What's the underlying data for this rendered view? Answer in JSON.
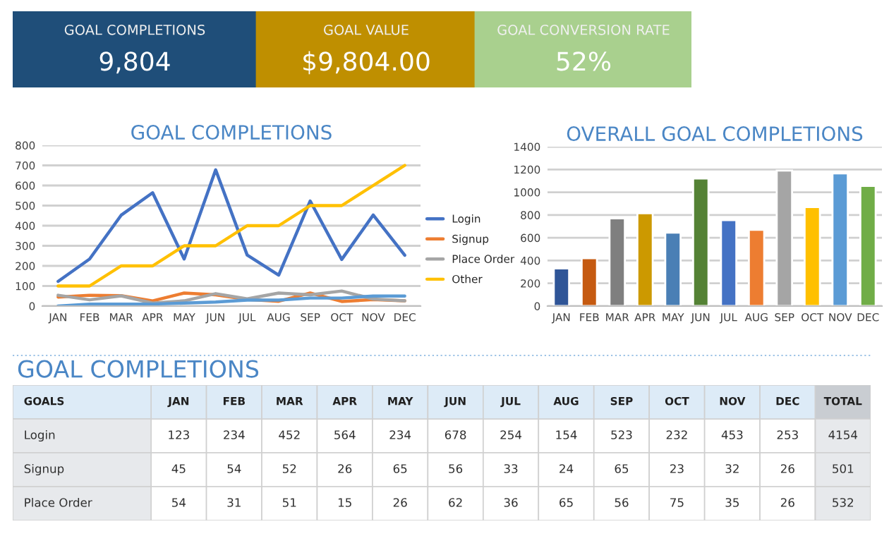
{
  "chart_data": [
    {
      "type": "other",
      "annotations": [
        "GOAL COMPLETIONS",
        "9,804",
        "GOAL VALUE",
        "$9,804.00",
        "GOAL CONVERSION RATE",
        "52%"
      ],
      "colors": [
        "#1f4e79",
        "#bf8f00",
        "#a9d08e"
      ]
    },
    {
      "type": "line",
      "title": "GOAL COMPLETIONS",
      "categories": [
        "JAN",
        "FEB",
        "MAR",
        "APR",
        "MAY",
        "JUN",
        "JUL",
        "AUG",
        "SEP",
        "OCT",
        "NOV",
        "DEC"
      ],
      "series": [
        {
          "name": "Login",
          "color": "#4472c4",
          "values": [
            123,
            234,
            452,
            564,
            234,
            678,
            254,
            154,
            523,
            232,
            453,
            253
          ]
        },
        {
          "name": "Signup",
          "color": "#ed7d31",
          "values": [
            45,
            54,
            52,
            26,
            65,
            56,
            33,
            24,
            65,
            23,
            32,
            26
          ]
        },
        {
          "name": "Place Order",
          "color": "#a5a5a5",
          "values": [
            54,
            31,
            51,
            15,
            26,
            62,
            36,
            65,
            56,
            75,
            35,
            26
          ]
        },
        {
          "name": "Other",
          "color": "#ffc000",
          "values": [
            100,
            100,
            200,
            200,
            300,
            300,
            400,
            400,
            500,
            500,
            600,
            700
          ]
        },
        {
          "color": "#5b9bd5",
          "values": [
            0,
            10,
            10,
            10,
            15,
            20,
            30,
            30,
            40,
            40,
            50,
            50
          ]
        }
      ],
      "ylim": [
        0,
        800
      ],
      "yticks": [
        0,
        100,
        200,
        300,
        400,
        500,
        600,
        700,
        800
      ],
      "grid": "y",
      "legend": "right",
      "marker": "none",
      "line_style": "solid"
    },
    {
      "type": "bar",
      "title": "OVERALL GOAL COMPLETIONS",
      "categories": [
        "JAN",
        "FEB",
        "MAR",
        "APR",
        "MAY",
        "JUN",
        "JUL",
        "AUG",
        "SEP",
        "OCT",
        "NOV",
        "DEC"
      ],
      "values": [
        330,
        420,
        770,
        815,
        645,
        1120,
        755,
        670,
        1190,
        870,
        1165,
        1055
      ],
      "colors": [
        "#2f5597",
        "#c55a11",
        "#7f7f7f",
        "#cc9900",
        "#4a7fb5",
        "#548235",
        "#4472c4",
        "#ed7d31",
        "#a5a5a5",
        "#ffc000",
        "#5b9bd5",
        "#70ad47"
      ],
      "ylim": [
        0,
        1400
      ],
      "yticks": [
        0,
        200,
        400,
        600,
        800,
        1000,
        1200,
        1400
      ],
      "grid": "y"
    },
    {
      "type": "heatmap",
      "title": "GOAL COMPLETIONS",
      "ylabel": "GOALS",
      "categories": [
        "JAN",
        "FEB",
        "MAR",
        "APR",
        "MAY",
        "JUN",
        "JUL",
        "AUG",
        "SEP",
        "OCT",
        "NOV",
        "DEC",
        "TOTAL"
      ],
      "y_categories": [
        "Login",
        "Signup",
        "Place Order"
      ],
      "cells": [
        [
          123,
          234,
          452,
          564,
          234,
          678,
          254,
          154,
          523,
          232,
          453,
          253,
          4154
        ],
        [
          45,
          54,
          52,
          26,
          65,
          56,
          33,
          24,
          65,
          23,
          32,
          26,
          501
        ],
        [
          54,
          31,
          51,
          15,
          26,
          62,
          36,
          65,
          56,
          75,
          35,
          26,
          532
        ]
      ],
      "data_labels": true
    }
  ]
}
